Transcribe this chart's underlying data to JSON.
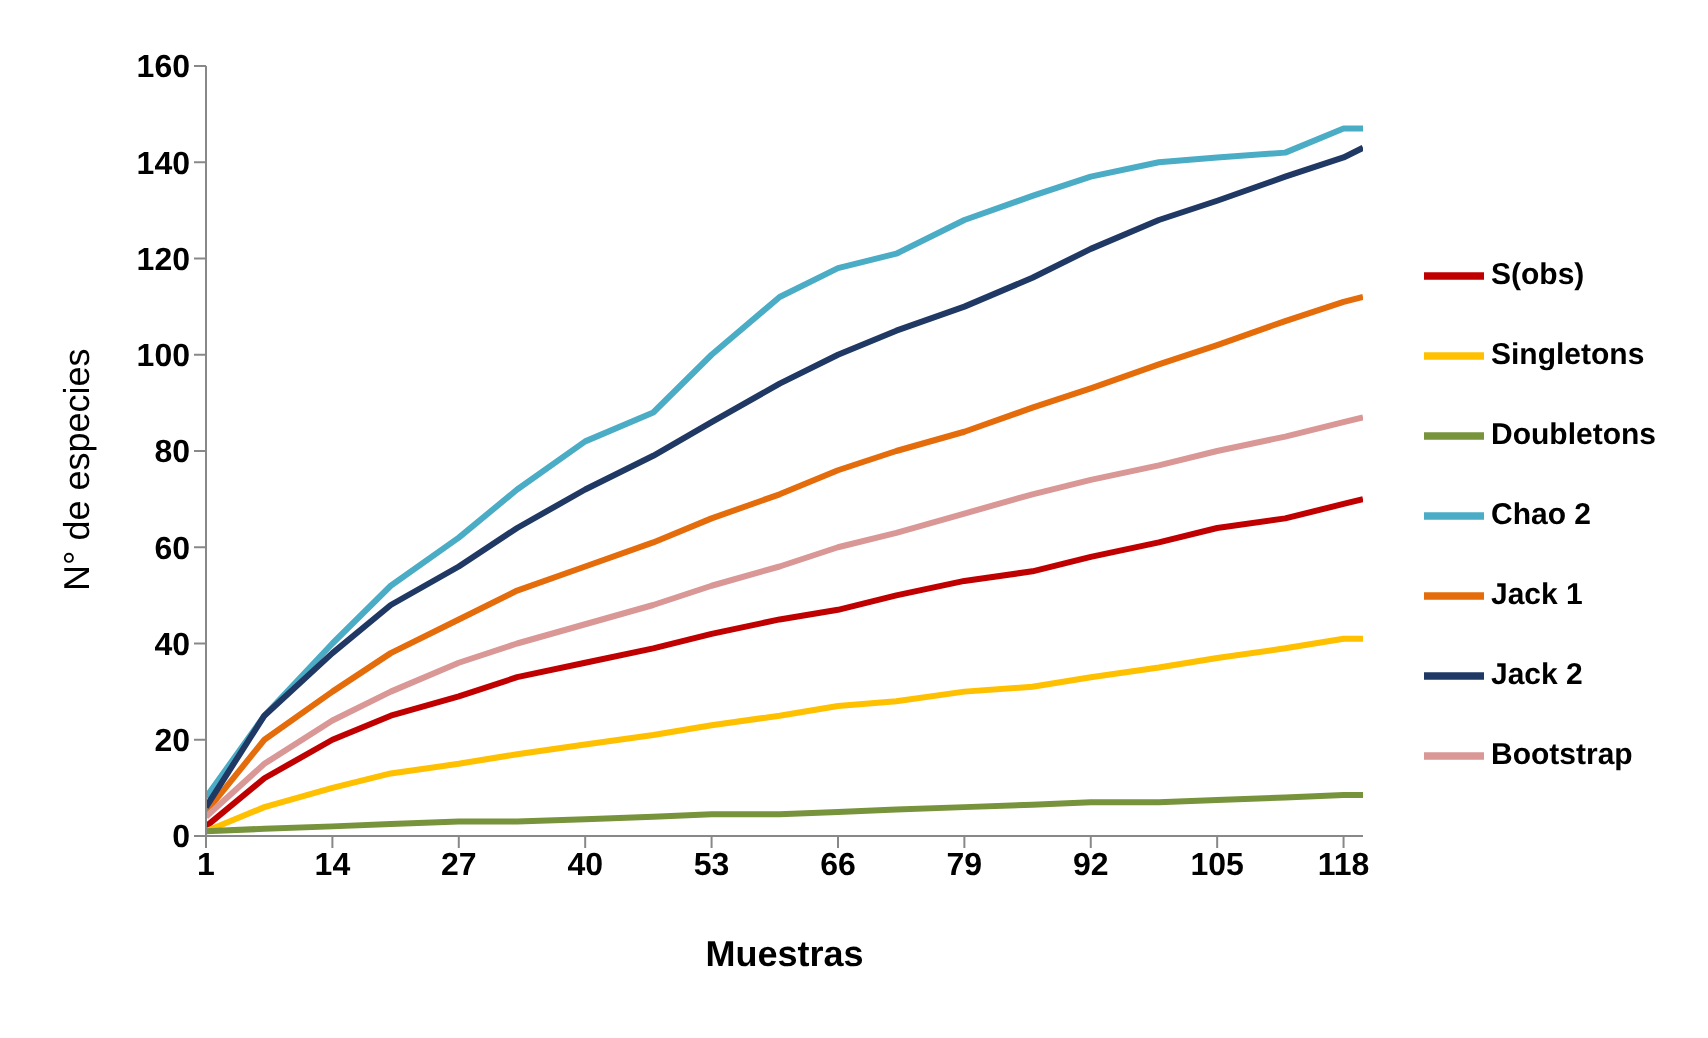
{
  "chart_data": {
    "type": "line",
    "xlabel": "Muestras",
    "ylabel": "N° de especies",
    "x": [
      1,
      7,
      14,
      20,
      27,
      33,
      40,
      47,
      53,
      60,
      66,
      72,
      79,
      86,
      92,
      99,
      105,
      112,
      118,
      120
    ],
    "xlim": [
      1,
      120
    ],
    "xticks": [
      1,
      14,
      27,
      40,
      53,
      66,
      79,
      92,
      105,
      118
    ],
    "ylim": [
      0,
      160
    ],
    "yticks": [
      0,
      20,
      40,
      60,
      80,
      100,
      120,
      140,
      160
    ],
    "grid": false,
    "legend": "right",
    "marker": "none",
    "line_style": "solid",
    "series": [
      {
        "name": "S(obs)",
        "color": "#c00000",
        "values": [
          2,
          12,
          20,
          25,
          29,
          33,
          36,
          39,
          42,
          45,
          47,
          50,
          53,
          55,
          58,
          61,
          64,
          66,
          69,
          70
        ]
      },
      {
        "name": "Singletons",
        "color": "#ffc000",
        "values": [
          1,
          6,
          10,
          13,
          15,
          17,
          19,
          21,
          23,
          25,
          27,
          28,
          30,
          31,
          33,
          35,
          37,
          39,
          41,
          41
        ]
      },
      {
        "name": "Doubletons",
        "color": "#77933c",
        "values": [
          1,
          1.5,
          2,
          2.5,
          3,
          3,
          3.5,
          4,
          4.5,
          4.5,
          5,
          5.5,
          6,
          6.5,
          7,
          7,
          7.5,
          8,
          8.5,
          8.5
        ]
      },
      {
        "name": "Chao 2",
        "color": "#4bacc6",
        "values": [
          8,
          25,
          40,
          52,
          62,
          72,
          82,
          88,
          100,
          112,
          118,
          121,
          128,
          133,
          137,
          140,
          141,
          142,
          147,
          147
        ]
      },
      {
        "name": "Jack 1",
        "color": "#e46c0a",
        "values": [
          5,
          20,
          30,
          38,
          45,
          51,
          56,
          61,
          66,
          71,
          76,
          80,
          84,
          89,
          93,
          98,
          102,
          107,
          111,
          112
        ]
      },
      {
        "name": "Jack 2",
        "color": "#1f3864",
        "values": [
          6,
          25,
          38,
          48,
          56,
          64,
          72,
          79,
          86,
          94,
          100,
          105,
          110,
          116,
          122,
          128,
          132,
          137,
          141,
          143
        ]
      },
      {
        "name": "Bootstrap",
        "color": "#d99795",
        "values": [
          4,
          15,
          24,
          30,
          36,
          40,
          44,
          48,
          52,
          56,
          60,
          63,
          67,
          71,
          74,
          77,
          80,
          83,
          86,
          87
        ]
      }
    ]
  }
}
